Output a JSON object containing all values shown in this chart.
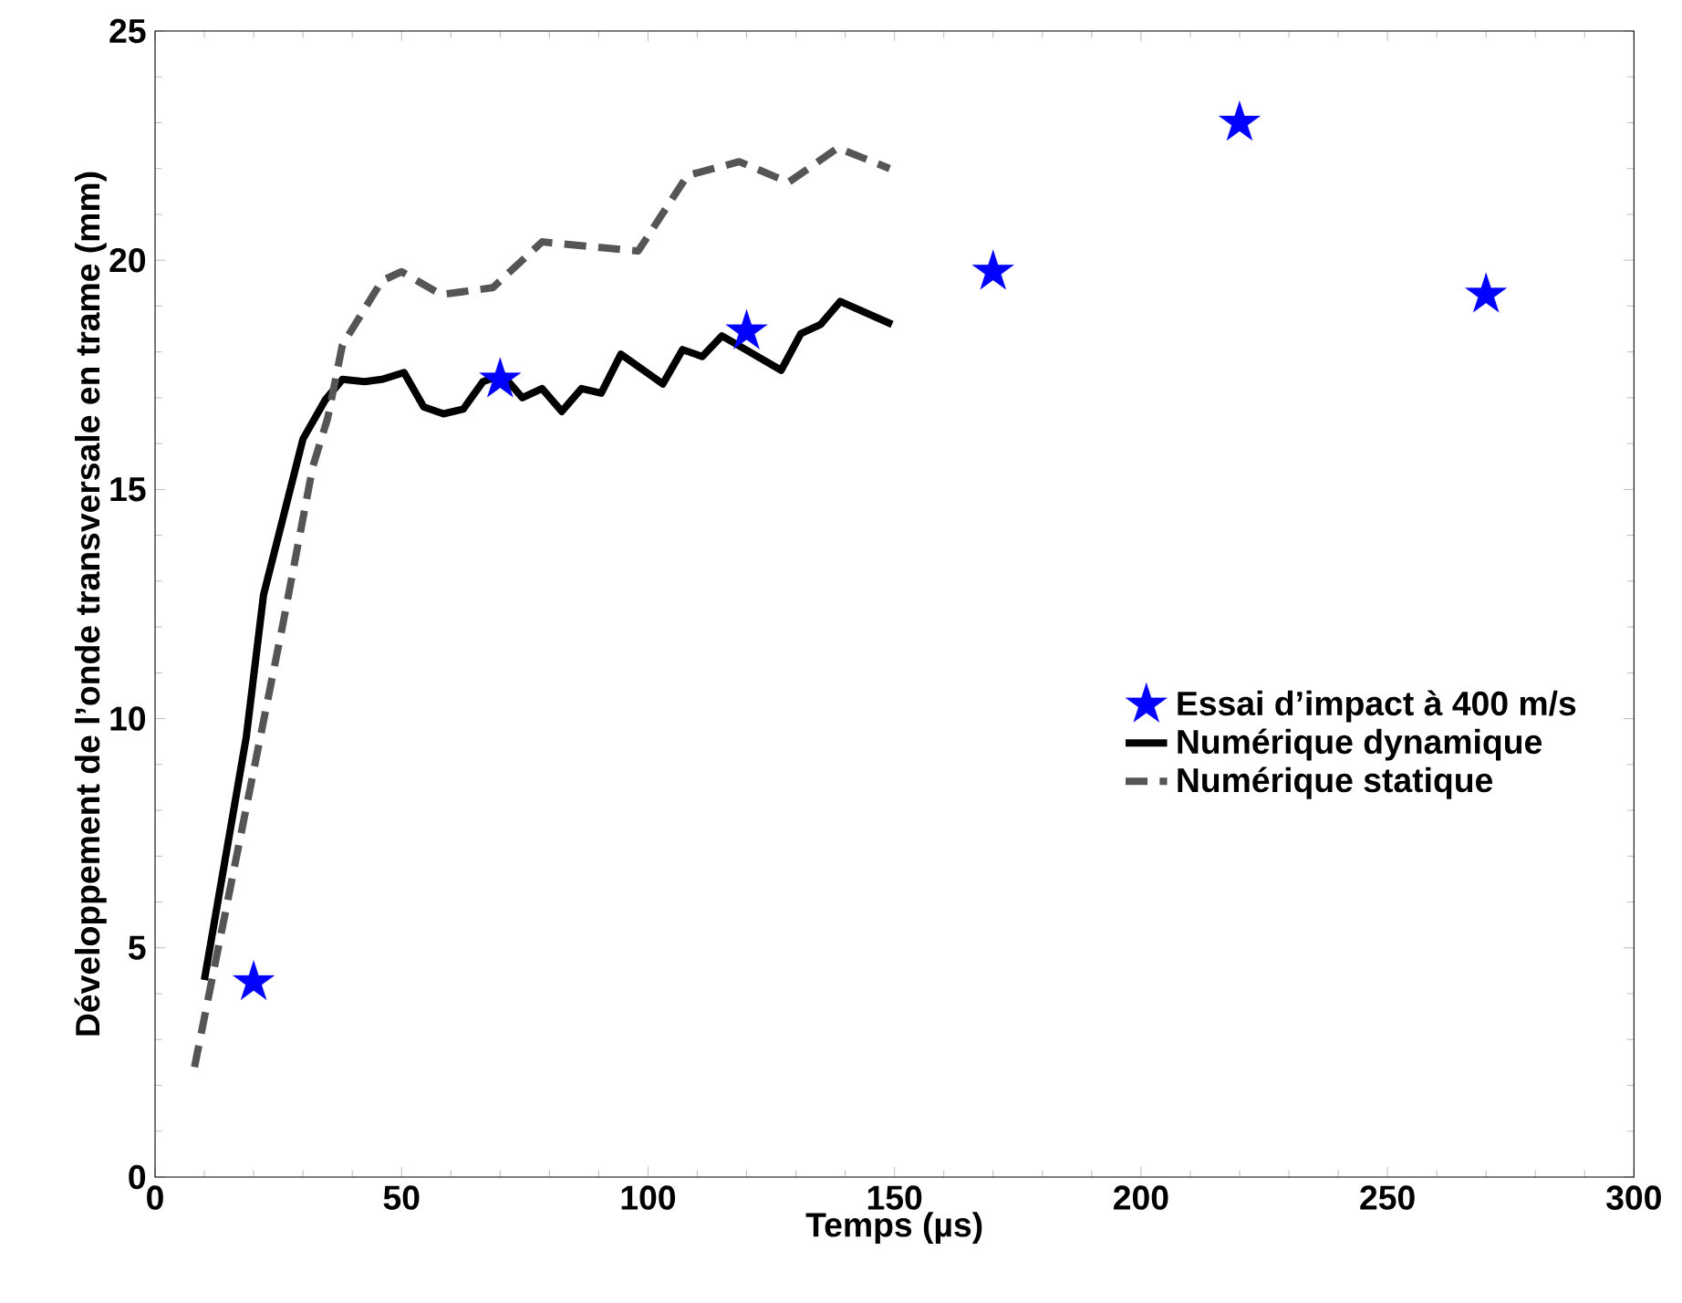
{
  "chart_data": {
    "type": "line",
    "xlabel": "Temps (µs)",
    "ylabel": "Développement de l’onde transversale en trame (mm)",
    "xlim": [
      0,
      300
    ],
    "ylim": [
      0,
      25
    ],
    "xticks": [
      0,
      50,
      100,
      150,
      200,
      250,
      300
    ],
    "yticks": [
      0,
      5,
      10,
      15,
      20,
      25
    ],
    "grid": false,
    "legend": "right",
    "series": [
      {
        "name": "Essai d’impact à 400 m/s",
        "type": "scatter",
        "marker": "star",
        "color": "#0000ff",
        "x": [
          20,
          70,
          120,
          170,
          220,
          270
        ],
        "values": [
          4.25,
          17.4,
          18.45,
          19.75,
          23.0,
          19.25
        ]
      },
      {
        "name": "Numérique dynamique",
        "line_style": "solid",
        "color": "#000000",
        "x": [
          10,
          18.5,
          22,
          30,
          34.5,
          38,
          42.5,
          46,
          50.5,
          54.5,
          58.5,
          62.5,
          66.5,
          70.5,
          74.5,
          78.5,
          82.5,
          86.5,
          90.5,
          94.5,
          103,
          107,
          111,
          115,
          127,
          131,
          135,
          139,
          149.5
        ],
        "values": [
          4.3,
          9.6,
          12.7,
          16.1,
          16.95,
          17.4,
          17.35,
          17.4,
          17.55,
          16.8,
          16.65,
          16.75,
          17.35,
          17.5,
          17.0,
          17.2,
          16.7,
          17.2,
          17.1,
          17.95,
          17.3,
          18.05,
          17.9,
          18.35,
          17.6,
          18.4,
          18.6,
          19.1,
          18.6
        ]
      },
      {
        "name": "Numérique statique",
        "line_style": "dashed",
        "color": "#555555",
        "x": [
          8,
          26,
          32,
          35,
          38,
          46,
          50,
          58,
          68.5,
          78.5,
          98,
          108,
          118.5,
          128.5,
          138.5,
          149
        ],
        "values": [
          2.4,
          12.1,
          15.5,
          16.55,
          18.15,
          19.55,
          19.75,
          19.25,
          19.4,
          20.4,
          20.2,
          21.85,
          22.15,
          21.7,
          22.45,
          22.0
        ]
      }
    ]
  }
}
